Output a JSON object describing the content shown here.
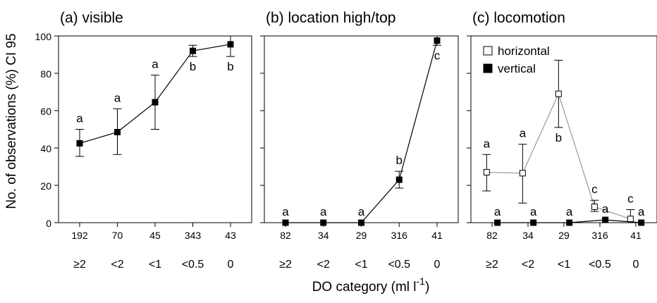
{
  "figure": {
    "ylabel": "No. of observations (%) CI 95",
    "xlabel": "DO category (ml l",
    "xlabel_sup": "-1",
    "xlabel_close": ")"
  },
  "chart_data": [
    {
      "type": "line",
      "title": "(a) visible",
      "categories": [
        "≥2",
        "<2",
        "<1",
        "<0.5",
        "0"
      ],
      "n": [
        "192",
        "70",
        "45",
        "343",
        "43"
      ],
      "ylim": [
        0,
        100
      ],
      "yticks": [
        0,
        20,
        40,
        60,
        80,
        100
      ],
      "series": [
        {
          "marker": "filled-square",
          "line_color": "#000000",
          "x": [
            0,
            1,
            2,
            3,
            4
          ],
          "values": [
            42.5,
            48.5,
            64.5,
            92,
            95.5
          ],
          "ci_low": [
            35.5,
            36.5,
            50,
            89,
            89
          ],
          "ci_high": [
            50,
            61,
            79,
            95,
            100
          ],
          "letters": [
            "a",
            "a",
            "a",
            "b",
            "b"
          ],
          "letter_pos": [
            "above",
            "above",
            "above",
            "below",
            "below"
          ]
        }
      ]
    },
    {
      "type": "line",
      "title": "(b) location high/top",
      "categories": [
        "≥2",
        "<2",
        "<1",
        "<0.5",
        "0"
      ],
      "n": [
        "82",
        "34",
        "29",
        "316",
        "41"
      ],
      "ylim": [
        0,
        100
      ],
      "yticks": [
        0,
        20,
        40,
        60,
        80,
        100
      ],
      "series": [
        {
          "marker": "filled-square",
          "line_color": "#000000",
          "x": [
            0,
            1,
            2,
            3,
            4
          ],
          "values": [
            0,
            0,
            0,
            23,
            97.5
          ],
          "ci_low": [
            null,
            null,
            null,
            18.5,
            95
          ],
          "ci_high": [
            null,
            null,
            null,
            27.5,
            100
          ],
          "letters": [
            "a",
            "a",
            "a",
            "b",
            "c"
          ],
          "letter_pos": [
            "above",
            "above",
            "above",
            "above",
            "below"
          ]
        }
      ]
    },
    {
      "type": "line",
      "title": "(c) locomotion",
      "categories": [
        "≥2",
        "<2",
        "<1",
        "<0.5",
        "0"
      ],
      "n": [
        "82",
        "34",
        "29",
        "316",
        "41"
      ],
      "ylim": [
        0,
        100
      ],
      "yticks": [
        0,
        20,
        40,
        60,
        80,
        100
      ],
      "legend_position": "top-left",
      "series": [
        {
          "name": "horizontal",
          "marker": "open-square",
          "line_color": "#999999",
          "x": [
            -0.15,
            0.85,
            1.85,
            2.85,
            3.85
          ],
          "values": [
            27,
            26.5,
            69,
            8.5,
            2
          ],
          "ci_low": [
            17,
            10.5,
            51,
            6,
            0
          ],
          "ci_high": [
            36.5,
            42,
            87,
            12,
            7
          ],
          "letters": [
            "a",
            "a",
            "b",
            "c",
            "c"
          ],
          "letter_pos": [
            "above",
            "above",
            "below",
            "above",
            "above"
          ]
        },
        {
          "name": "vertical",
          "marker": "filled-square",
          "line_color": "#000000",
          "x": [
            0.15,
            1.15,
            2.15,
            3.15,
            4.15
          ],
          "values": [
            0,
            0,
            0,
            1.5,
            0
          ],
          "ci_low": [
            null,
            null,
            null,
            null,
            null
          ],
          "ci_high": [
            null,
            null,
            null,
            null,
            null
          ],
          "letters": [
            "a",
            "a",
            "a",
            "a",
            "a"
          ],
          "letter_pos": [
            "above",
            "above",
            "above",
            "above",
            "above"
          ]
        }
      ]
    }
  ]
}
